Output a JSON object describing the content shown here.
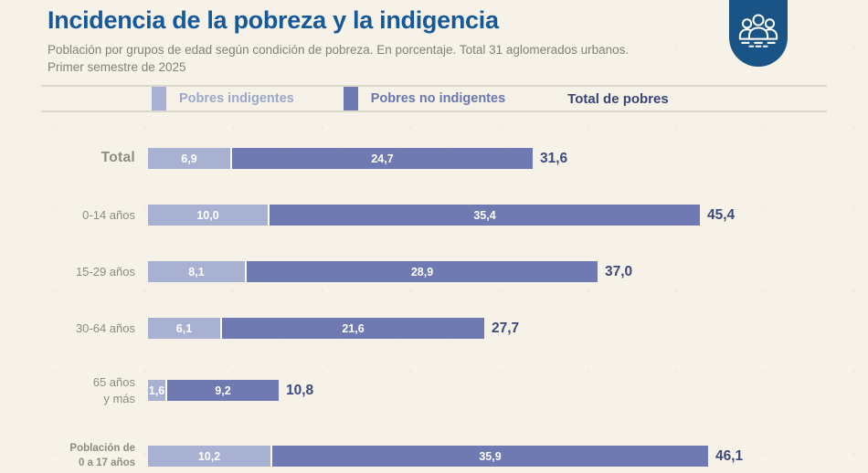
{
  "header": {
    "title": "Incidencia de la pobreza y la indigencia",
    "subtitle_line1": "Población por grupos de edad según condición de pobreza. En porcentaje. Total 31 aglomerados urbanos.",
    "subtitle_line2": "Primer semestre de 2025",
    "badge_icon": "people-group-icon"
  },
  "legend": {
    "items": [
      {
        "label": "Pobres indigentes",
        "key": "indigent"
      },
      {
        "label": "Pobres no indigentes",
        "key": "non_indigent"
      }
    ],
    "total_label": "Total de pobres"
  },
  "colors": {
    "background": "#f6f2e7",
    "title": "#15599b",
    "badge": "#1a5385",
    "indigent": "#a9b1d2",
    "non_indigent": "#6e7ab1",
    "total_value_text": "#3c4a7e",
    "row_label_text": "#8e8b84",
    "legend_indigent_text": "#9ca7cc",
    "legend_non_indigent_text": "#6a77ae",
    "legend_total_text": "#39457a",
    "rule": "#dcd8cb"
  },
  "chart_data": {
    "type": "bar",
    "orientation": "horizontal",
    "stacked": true,
    "unit": "%",
    "title": "Incidencia de la pobreza y la indigencia",
    "subtitle": "Población por grupos de edad según condición de pobreza. En porcentaje. Total 31 aglomerados urbanos. Primer semestre de 2025",
    "categories": [
      "Total",
      "0-14 años",
      "15-29 años",
      "30-64 años",
      "65 años\ny más",
      "Población de\n0 a 17 años"
    ],
    "category_kinds": [
      "total",
      "age",
      "age",
      "age",
      "age",
      "special"
    ],
    "series": [
      {
        "name": "Pobres indigentes",
        "values": [
          6.9,
          10.0,
          8.1,
          6.1,
          1.6,
          10.2
        ]
      },
      {
        "name": "Pobres no indigentes",
        "values": [
          24.7,
          35.4,
          28.9,
          21.6,
          9.2,
          35.9
        ]
      }
    ],
    "totals": [
      31.6,
      45.4,
      37.0,
      27.7,
      10.8,
      46.1
    ],
    "value_format": "decimal-comma",
    "xlim": [
      0,
      48
    ],
    "grid": false,
    "legend_position": "top"
  }
}
